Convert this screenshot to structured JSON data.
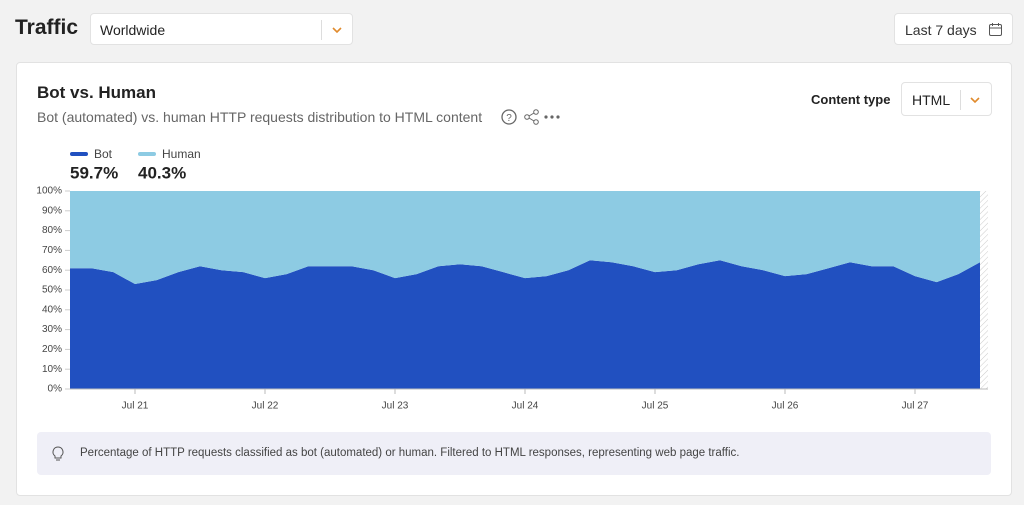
{
  "page": {
    "title": "Traffic",
    "location": "Worldwide",
    "range": "Last 7 days",
    "filter_label": "Content type",
    "filter_value": "HTML",
    "note": "Percentage of HTTP requests classified as bot (automated) or human. Filtered to HTML responses, representing web page traffic."
  },
  "chart_data": {
    "type": "stacked_area",
    "title": "Bot vs. Human",
    "subtitle": "Bot (automated) vs. human HTTP requests distribution to HTML content",
    "categories": [
      null,
      null,
      null,
      "Jul 21",
      null,
      null,
      null,
      null,
      null,
      "Jul 22",
      null,
      null,
      null,
      null,
      null,
      "Jul 23",
      null,
      null,
      null,
      null,
      null,
      "Jul 24",
      null,
      null,
      null,
      null,
      null,
      "Jul 25",
      null,
      null,
      null,
      null,
      null,
      "Jul 26",
      null,
      null,
      null,
      null,
      null,
      "Jul 27",
      null,
      null,
      null
    ],
    "series": [
      {
        "name": "Bot",
        "color": "#2150c0",
        "share": {
          "value": 59.7,
          "label": "59.7%"
        },
        "values": [
          61,
          61,
          59,
          53,
          55,
          59,
          62,
          60,
          59,
          56,
          58,
          62,
          62,
          62,
          60,
          56,
          58,
          62,
          63,
          62,
          59,
          56,
          57,
          60,
          65,
          64,
          62,
          59,
          60,
          63,
          65,
          62,
          60,
          57,
          58,
          61,
          64,
          62,
          62,
          57,
          54,
          58,
          64
        ]
      },
      {
        "name": "Human",
        "color": "#8dcbe3",
        "share": {
          "value": 40.3,
          "label": "40.3%"
        },
        "values": [
          39,
          39,
          41,
          47,
          45,
          41,
          38,
          40,
          41,
          44,
          42,
          38,
          38,
          38,
          40,
          44,
          42,
          38,
          37,
          38,
          41,
          44,
          43,
          40,
          35,
          36,
          38,
          41,
          40,
          37,
          35,
          38,
          40,
          43,
          42,
          39,
          36,
          38,
          38,
          43,
          46,
          42,
          36
        ]
      }
    ],
    "ylim": [
      0,
      100
    ],
    "yticks": [
      {
        "value": 0,
        "label": "0%"
      },
      {
        "value": 10,
        "label": "10%"
      },
      {
        "value": 20,
        "label": "20%"
      },
      {
        "value": 30,
        "label": "30%"
      },
      {
        "value": 40,
        "label": "40%"
      },
      {
        "value": 50,
        "label": "50%"
      },
      {
        "value": 60,
        "label": "60%"
      },
      {
        "value": 70,
        "label": "70%"
      },
      {
        "value": 80,
        "label": "80%"
      },
      {
        "value": 90,
        "label": "90%"
      },
      {
        "value": 100,
        "label": "100%"
      }
    ]
  }
}
